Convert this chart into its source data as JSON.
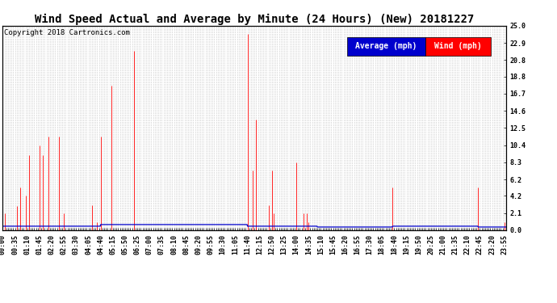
{
  "title": "Wind Speed Actual and Average by Minute (24 Hours) (New) 20181227",
  "copyright": "Copyright 2018 Cartronics.com",
  "ylabel_right_ticks": [
    0.0,
    2.1,
    4.2,
    6.2,
    8.3,
    10.4,
    12.5,
    14.6,
    16.7,
    18.8,
    20.8,
    22.9,
    25.0
  ],
  "ylim": [
    0,
    25.0
  ],
  "total_minutes": 1440,
  "bg_color": "#ffffff",
  "grid_color": "#c8c8c8",
  "wind_color": "#ff0000",
  "avg_color": "#0000cd",
  "legend_avg_bg": "#0000cd",
  "legend_wind_bg": "#ff0000",
  "title_fontsize": 10,
  "copyright_fontsize": 6.5,
  "tick_fontsize": 6,
  "legend_fontsize": 7,
  "wind_data": [
    [
      0,
      0.0
    ],
    [
      5,
      2.1
    ],
    [
      10,
      0.0
    ],
    [
      15,
      0.0
    ],
    [
      20,
      0.0
    ],
    [
      25,
      0.0
    ],
    [
      30,
      0.0
    ],
    [
      35,
      0.0
    ],
    [
      40,
      3.0
    ],
    [
      45,
      0.0
    ],
    [
      50,
      5.2
    ],
    [
      55,
      0.0
    ],
    [
      60,
      0.0
    ],
    [
      65,
      4.2
    ],
    [
      70,
      0.0
    ],
    [
      75,
      9.2
    ],
    [
      80,
      0.0
    ],
    [
      85,
      0.0
    ],
    [
      90,
      0.0
    ],
    [
      95,
      0.0
    ],
    [
      100,
      0.0
    ],
    [
      105,
      10.4
    ],
    [
      110,
      0.0
    ],
    [
      115,
      9.2
    ],
    [
      120,
      0.0
    ],
    [
      125,
      0.0
    ],
    [
      130,
      11.5
    ],
    [
      135,
      0.0
    ],
    [
      140,
      0.0
    ],
    [
      145,
      0.0
    ],
    [
      150,
      0.0
    ],
    [
      155,
      0.0
    ],
    [
      160,
      11.5
    ],
    [
      165,
      0.0
    ],
    [
      170,
      0.0
    ],
    [
      175,
      2.1
    ],
    [
      180,
      0.0
    ],
    [
      185,
      0.0
    ],
    [
      190,
      0.0
    ],
    [
      195,
      0.0
    ],
    [
      200,
      0.0
    ],
    [
      205,
      0.0
    ],
    [
      210,
      0.0
    ],
    [
      215,
      0.0
    ],
    [
      220,
      0.0
    ],
    [
      225,
      0.0
    ],
    [
      230,
      0.0
    ],
    [
      235,
      0.0
    ],
    [
      240,
      0.0
    ],
    [
      245,
      0.0
    ],
    [
      250,
      0.0
    ],
    [
      255,
      3.1
    ],
    [
      260,
      0.0
    ],
    [
      265,
      0.0
    ],
    [
      270,
      1.0
    ],
    [
      275,
      0.0
    ],
    [
      280,
      11.5
    ],
    [
      285,
      0.0
    ],
    [
      290,
      0.0
    ],
    [
      295,
      0.0
    ],
    [
      300,
      0.0
    ],
    [
      305,
      0.0
    ],
    [
      310,
      17.7
    ],
    [
      315,
      0.0
    ],
    [
      320,
      0.0
    ],
    [
      325,
      0.0
    ],
    [
      330,
      0.0
    ],
    [
      335,
      0.0
    ],
    [
      340,
      0.0
    ],
    [
      345,
      0.0
    ],
    [
      350,
      0.0
    ],
    [
      355,
      0.0
    ],
    [
      360,
      0.0
    ],
    [
      365,
      0.0
    ],
    [
      370,
      0.0
    ],
    [
      375,
      21.9
    ],
    [
      380,
      0.0
    ],
    [
      385,
      0.0
    ],
    [
      390,
      0.0
    ],
    [
      395,
      0.0
    ],
    [
      400,
      0.0
    ],
    [
      405,
      0.0
    ],
    [
      410,
      0.0
    ],
    [
      415,
      0.0
    ],
    [
      420,
      0.0
    ],
    [
      425,
      0.0
    ],
    [
      430,
      0.0
    ],
    [
      435,
      0.0
    ],
    [
      440,
      0.0
    ],
    [
      445,
      0.0
    ],
    [
      450,
      0.0
    ],
    [
      455,
      0.0
    ],
    [
      460,
      0.0
    ],
    [
      465,
      0.0
    ],
    [
      470,
      0.0
    ],
    [
      475,
      0.0
    ],
    [
      480,
      0.0
    ],
    [
      485,
      0.0
    ],
    [
      490,
      0.0
    ],
    [
      495,
      0.0
    ],
    [
      500,
      0.0
    ],
    [
      505,
      0.0
    ],
    [
      510,
      0.0
    ],
    [
      515,
      0.0
    ],
    [
      520,
      0.0
    ],
    [
      525,
      0.0
    ],
    [
      530,
      0.0
    ],
    [
      535,
      0.0
    ],
    [
      540,
      0.0
    ],
    [
      545,
      0.0
    ],
    [
      550,
      0.0
    ],
    [
      555,
      0.0
    ],
    [
      560,
      0.0
    ],
    [
      565,
      0.0
    ],
    [
      570,
      0.0
    ],
    [
      575,
      0.0
    ],
    [
      580,
      0.0
    ],
    [
      585,
      0.0
    ],
    [
      590,
      0.0
    ],
    [
      595,
      0.0
    ],
    [
      600,
      0.0
    ],
    [
      605,
      0.0
    ],
    [
      610,
      0.0
    ],
    [
      615,
      0.0
    ],
    [
      620,
      0.0
    ],
    [
      625,
      0.0
    ],
    [
      630,
      0.0
    ],
    [
      635,
      0.0
    ],
    [
      640,
      0.0
    ],
    [
      645,
      0.0
    ],
    [
      650,
      0.0
    ],
    [
      655,
      0.0
    ],
    [
      660,
      0.0
    ],
    [
      665,
      0.0
    ],
    [
      670,
      0.0
    ],
    [
      675,
      0.0
    ],
    [
      680,
      0.0
    ],
    [
      685,
      0.0
    ],
    [
      690,
      0.0
    ],
    [
      695,
      0.0
    ],
    [
      700,
      24.0
    ],
    [
      705,
      0.0
    ],
    [
      710,
      0.0
    ],
    [
      715,
      7.3
    ],
    [
      720,
      0.0
    ],
    [
      725,
      13.5
    ],
    [
      730,
      0.0
    ],
    [
      735,
      0.0
    ],
    [
      740,
      0.0
    ],
    [
      745,
      0.0
    ],
    [
      750,
      0.0
    ],
    [
      755,
      0.0
    ],
    [
      760,
      3.1
    ],
    [
      765,
      0.0
    ],
    [
      770,
      7.3
    ],
    [
      775,
      2.1
    ],
    [
      780,
      0.0
    ],
    [
      785,
      0.0
    ],
    [
      790,
      0.0
    ],
    [
      795,
      0.0
    ],
    [
      800,
      0.0
    ],
    [
      805,
      0.0
    ],
    [
      810,
      0.0
    ],
    [
      815,
      0.0
    ],
    [
      820,
      0.0
    ],
    [
      825,
      0.0
    ],
    [
      830,
      0.0
    ],
    [
      835,
      0.0
    ],
    [
      840,
      8.3
    ],
    [
      845,
      0.0
    ],
    [
      850,
      0.0
    ],
    [
      855,
      0.0
    ],
    [
      860,
      2.1
    ],
    [
      865,
      0.0
    ],
    [
      870,
      2.1
    ],
    [
      875,
      1.0
    ],
    [
      880,
      0.0
    ],
    [
      885,
      0.0
    ],
    [
      890,
      0.0
    ],
    [
      895,
      0.0
    ],
    [
      900,
      0.0
    ],
    [
      905,
      0.0
    ],
    [
      910,
      0.0
    ],
    [
      915,
      0.0
    ],
    [
      920,
      0.0
    ],
    [
      925,
      0.0
    ],
    [
      930,
      0.0
    ],
    [
      935,
      0.0
    ],
    [
      940,
      0.0
    ],
    [
      945,
      0.0
    ],
    [
      950,
      0.0
    ],
    [
      955,
      0.0
    ],
    [
      960,
      0.0
    ],
    [
      965,
      0.0
    ],
    [
      970,
      0.0
    ],
    [
      975,
      0.0
    ],
    [
      980,
      0.0
    ],
    [
      985,
      0.0
    ],
    [
      990,
      0.0
    ],
    [
      995,
      0.0
    ],
    [
      1000,
      0.0
    ],
    [
      1005,
      0.0
    ],
    [
      1010,
      0.0
    ],
    [
      1015,
      0.0
    ],
    [
      1020,
      0.0
    ],
    [
      1025,
      0.0
    ],
    [
      1030,
      0.0
    ],
    [
      1035,
      0.0
    ],
    [
      1040,
      0.0
    ],
    [
      1045,
      0.0
    ],
    [
      1050,
      0.0
    ],
    [
      1055,
      0.0
    ],
    [
      1060,
      0.0
    ],
    [
      1065,
      0.0
    ],
    [
      1070,
      0.0
    ],
    [
      1075,
      0.0
    ],
    [
      1080,
      0.0
    ],
    [
      1085,
      0.0
    ],
    [
      1090,
      0.0
    ],
    [
      1095,
      0.0
    ],
    [
      1100,
      0.0
    ],
    [
      1105,
      0.0
    ],
    [
      1110,
      0.0
    ],
    [
      1115,
      5.2
    ],
    [
      1120,
      0.0
    ],
    [
      1125,
      0.0
    ],
    [
      1130,
      0.0
    ],
    [
      1135,
      0.0
    ],
    [
      1140,
      0.0
    ],
    [
      1145,
      0.0
    ],
    [
      1150,
      0.0
    ],
    [
      1155,
      0.0
    ],
    [
      1160,
      0.0
    ],
    [
      1165,
      0.0
    ],
    [
      1170,
      0.0
    ],
    [
      1175,
      0.0
    ],
    [
      1180,
      0.0
    ],
    [
      1185,
      0.0
    ],
    [
      1190,
      0.0
    ],
    [
      1195,
      0.0
    ],
    [
      1200,
      0.0
    ],
    [
      1205,
      0.0
    ],
    [
      1210,
      0.0
    ],
    [
      1215,
      0.0
    ],
    [
      1220,
      0.0
    ],
    [
      1225,
      0.0
    ],
    [
      1230,
      0.0
    ],
    [
      1235,
      0.0
    ],
    [
      1240,
      0.0
    ],
    [
      1245,
      0.0
    ],
    [
      1250,
      0.0
    ],
    [
      1255,
      0.0
    ],
    [
      1260,
      0.0
    ],
    [
      1265,
      0.0
    ],
    [
      1270,
      0.0
    ],
    [
      1275,
      0.0
    ],
    [
      1280,
      0.0
    ],
    [
      1285,
      0.0
    ],
    [
      1290,
      0.0
    ],
    [
      1295,
      0.0
    ],
    [
      1300,
      0.0
    ],
    [
      1305,
      0.0
    ],
    [
      1310,
      0.0
    ],
    [
      1315,
      0.0
    ],
    [
      1320,
      0.0
    ],
    [
      1325,
      0.0
    ],
    [
      1330,
      0.0
    ],
    [
      1335,
      0.0
    ],
    [
      1340,
      0.0
    ],
    [
      1345,
      0.0
    ],
    [
      1350,
      0.0
    ],
    [
      1355,
      0.0
    ],
    [
      1360,
      5.2
    ],
    [
      1365,
      0.0
    ],
    [
      1370,
      0.0
    ],
    [
      1375,
      0.0
    ],
    [
      1380,
      0.0
    ],
    [
      1385,
      0.0
    ],
    [
      1390,
      0.0
    ],
    [
      1395,
      0.0
    ],
    [
      1400,
      0.0
    ],
    [
      1405,
      0.0
    ],
    [
      1410,
      0.0
    ],
    [
      1415,
      0.0
    ],
    [
      1420,
      0.0
    ],
    [
      1425,
      0.0
    ],
    [
      1430,
      0.0
    ],
    [
      1435,
      1.0
    ]
  ],
  "avg_data": [
    [
      0,
      0.5
    ],
    [
      280,
      0.7
    ],
    [
      375,
      0.7
    ],
    [
      700,
      0.5
    ],
    [
      840,
      0.5
    ],
    [
      900,
      0.4
    ],
    [
      1000,
      0.4
    ],
    [
      1115,
      0.5
    ],
    [
      1360,
      0.4
    ],
    [
      1439,
      0.4
    ]
  ],
  "x_label_interval": 35,
  "x_tick_interval": 5
}
